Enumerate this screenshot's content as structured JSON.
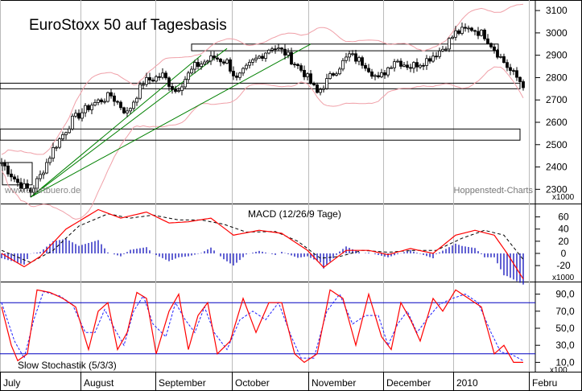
{
  "chart_data": [
    {
      "type": "candlestick",
      "title": "EuroStoxx 50 auf Tagesbasis",
      "watermark": "www.chartbuero.de",
      "source": "Hoppenstedt-Charts",
      "x_ticks": [
        "July",
        "August",
        "September",
        "October",
        "November",
        "December",
        "2010",
        "Febru"
      ],
      "y_ticks": [
        2300,
        2400,
        2500,
        2600,
        2700,
        2800,
        2900,
        3000,
        3100
      ],
      "ylim": [
        2240,
        3140
      ],
      "y_multiplier": "x1000",
      "close_anchors": [
        {
          "t": 0,
          "v": 2420
        },
        {
          "t": 5,
          "v": 2330
        },
        {
          "t": 9,
          "v": 2290
        },
        {
          "t": 12,
          "v": 2360
        },
        {
          "t": 16,
          "v": 2480
        },
        {
          "t": 22,
          "v": 2610
        },
        {
          "t": 28,
          "v": 2680
        },
        {
          "t": 34,
          "v": 2720
        },
        {
          "t": 39,
          "v": 2640
        },
        {
          "t": 44,
          "v": 2780
        },
        {
          "t": 50,
          "v": 2810
        },
        {
          "t": 54,
          "v": 2740
        },
        {
          "t": 60,
          "v": 2850
        },
        {
          "t": 66,
          "v": 2890
        },
        {
          "t": 70,
          "v": 2870
        },
        {
          "t": 73,
          "v": 2790
        },
        {
          "t": 78,
          "v": 2870
        },
        {
          "t": 84,
          "v": 2940
        },
        {
          "t": 88,
          "v": 2910
        },
        {
          "t": 94,
          "v": 2820
        },
        {
          "t": 98,
          "v": 2730
        },
        {
          "t": 103,
          "v": 2820
        },
        {
          "t": 108,
          "v": 2900
        },
        {
          "t": 113,
          "v": 2860
        },
        {
          "t": 117,
          "v": 2790
        },
        {
          "t": 122,
          "v": 2880
        },
        {
          "t": 127,
          "v": 2850
        },
        {
          "t": 132,
          "v": 2880
        },
        {
          "t": 137,
          "v": 2930
        },
        {
          "t": 141,
          "v": 3000
        },
        {
          "t": 146,
          "v": 3020
        },
        {
          "t": 150,
          "v": 2990
        },
        {
          "t": 154,
          "v": 2910
        },
        {
          "t": 158,
          "v": 2830
        },
        {
          "t": 162,
          "v": 2770
        }
      ],
      "resistance_zone": [
        2920,
        2950
      ],
      "support_zone": [
        2750,
        2775
      ],
      "lower_zone": [
        2520,
        2570
      ],
      "early_box": [
        2320,
        2420
      ],
      "trendlines": [
        {
          "from": {
            "t": 9,
            "v": 2265
          },
          "to": {
            "t": 62,
            "v": 2900
          }
        },
        {
          "from": {
            "t": 9,
            "v": 2265
          },
          "to": {
            "t": 70,
            "v": 2930
          }
        },
        {
          "from": {
            "t": 9,
            "v": 2265
          },
          "to": {
            "t": 96,
            "v": 2950
          }
        }
      ]
    },
    {
      "type": "line",
      "title": "MACD (12/26/9 Tage)",
      "y_ticks": [
        60,
        40,
        20,
        0,
        -20
      ],
      "ylim": [
        -45,
        78
      ],
      "y_multiplier": "x1000",
      "macd_anchors": [
        {
          "t": 0,
          "v": 0
        },
        {
          "t": 7,
          "v": -22
        },
        {
          "t": 12,
          "v": -5
        },
        {
          "t": 20,
          "v": 40
        },
        {
          "t": 30,
          "v": 72
        },
        {
          "t": 37,
          "v": 58
        },
        {
          "t": 45,
          "v": 68
        },
        {
          "t": 52,
          "v": 50
        },
        {
          "t": 58,
          "v": 52
        },
        {
          "t": 65,
          "v": 58
        },
        {
          "t": 72,
          "v": 30
        },
        {
          "t": 80,
          "v": 38
        },
        {
          "t": 87,
          "v": 33
        },
        {
          "t": 95,
          "v": 5
        },
        {
          "t": 100,
          "v": -23
        },
        {
          "t": 107,
          "v": 5
        },
        {
          "t": 114,
          "v": 5
        },
        {
          "t": 120,
          "v": -2
        },
        {
          "t": 127,
          "v": 8
        },
        {
          "t": 134,
          "v": 0
        },
        {
          "t": 141,
          "v": 30
        },
        {
          "t": 147,
          "v": 38
        },
        {
          "t": 153,
          "v": 30
        },
        {
          "t": 157,
          "v": 0
        },
        {
          "t": 162,
          "v": -42
        }
      ],
      "signal_anchors": [
        {
          "t": 0,
          "v": 5
        },
        {
          "t": 9,
          "v": -15
        },
        {
          "t": 16,
          "v": 5
        },
        {
          "t": 24,
          "v": 45
        },
        {
          "t": 33,
          "v": 65
        },
        {
          "t": 40,
          "v": 58
        },
        {
          "t": 47,
          "v": 63
        },
        {
          "t": 55,
          "v": 55
        },
        {
          "t": 62,
          "v": 55
        },
        {
          "t": 69,
          "v": 48
        },
        {
          "t": 76,
          "v": 35
        },
        {
          "t": 85,
          "v": 36
        },
        {
          "t": 92,
          "v": 20
        },
        {
          "t": 99,
          "v": -8
        },
        {
          "t": 105,
          "v": -5
        },
        {
          "t": 112,
          "v": 5
        },
        {
          "t": 120,
          "v": 2
        },
        {
          "t": 128,
          "v": 5
        },
        {
          "t": 135,
          "v": 5
        },
        {
          "t": 143,
          "v": 25
        },
        {
          "t": 150,
          "v": 38
        },
        {
          "t": 156,
          "v": 30
        },
        {
          "t": 162,
          "v": -10
        }
      ]
    },
    {
      "type": "line",
      "title": "Slow Stochastik (5/3/3)",
      "y_ticks": [
        "90,0",
        "70,0",
        "50,0",
        "30,0",
        "10,0"
      ],
      "ylim": [
        0,
        100
      ],
      "y_multiplier": "x100",
      "reference_levels": [
        80,
        20
      ],
      "k_anchors": [
        {
          "t": 0,
          "v": 75
        },
        {
          "t": 3,
          "v": 30
        },
        {
          "t": 5,
          "v": 12
        },
        {
          "t": 8,
          "v": 20
        },
        {
          "t": 11,
          "v": 95
        },
        {
          "t": 15,
          "v": 92
        },
        {
          "t": 19,
          "v": 85
        },
        {
          "t": 23,
          "v": 75
        },
        {
          "t": 27,
          "v": 25
        },
        {
          "t": 30,
          "v": 70
        },
        {
          "t": 33,
          "v": 80
        },
        {
          "t": 36,
          "v": 25
        },
        {
          "t": 39,
          "v": 45
        },
        {
          "t": 42,
          "v": 92
        },
        {
          "t": 45,
          "v": 85
        },
        {
          "t": 48,
          "v": 20
        },
        {
          "t": 52,
          "v": 70
        },
        {
          "t": 55,
          "v": 90
        },
        {
          "t": 58,
          "v": 25
        },
        {
          "t": 61,
          "v": 65
        },
        {
          "t": 64,
          "v": 80
        },
        {
          "t": 67,
          "v": 20
        },
        {
          "t": 71,
          "v": 35
        },
        {
          "t": 75,
          "v": 85
        },
        {
          "t": 79,
          "v": 45
        },
        {
          "t": 83,
          "v": 80
        },
        {
          "t": 87,
          "v": 80
        },
        {
          "t": 91,
          "v": 20
        },
        {
          "t": 94,
          "v": 10
        },
        {
          "t": 98,
          "v": 20
        },
        {
          "t": 102,
          "v": 95
        },
        {
          "t": 106,
          "v": 85
        },
        {
          "t": 110,
          "v": 30
        },
        {
          "t": 114,
          "v": 90
        },
        {
          "t": 118,
          "v": 40
        },
        {
          "t": 121,
          "v": 25
        },
        {
          "t": 124,
          "v": 80
        },
        {
          "t": 127,
          "v": 60
        },
        {
          "t": 130,
          "v": 35
        },
        {
          "t": 134,
          "v": 85
        },
        {
          "t": 137,
          "v": 70
        },
        {
          "t": 141,
          "v": 95
        },
        {
          "t": 145,
          "v": 85
        },
        {
          "t": 149,
          "v": 75
        },
        {
          "t": 153,
          "v": 20
        },
        {
          "t": 156,
          "v": 30
        },
        {
          "t": 159,
          "v": 10
        },
        {
          "t": 162,
          "v": 10
        }
      ],
      "d_anchors": [
        {
          "t": 0,
          "v": 80
        },
        {
          "t": 4,
          "v": 35
        },
        {
          "t": 7,
          "v": 15
        },
        {
          "t": 10,
          "v": 60
        },
        {
          "t": 13,
          "v": 93
        },
        {
          "t": 18,
          "v": 88
        },
        {
          "t": 22,
          "v": 78
        },
        {
          "t": 26,
          "v": 45
        },
        {
          "t": 29,
          "v": 45
        },
        {
          "t": 32,
          "v": 72
        },
        {
          "t": 35,
          "v": 50
        },
        {
          "t": 38,
          "v": 30
        },
        {
          "t": 41,
          "v": 70
        },
        {
          "t": 44,
          "v": 88
        },
        {
          "t": 47,
          "v": 55
        },
        {
          "t": 51,
          "v": 40
        },
        {
          "t": 54,
          "v": 80
        },
        {
          "t": 57,
          "v": 60
        },
        {
          "t": 60,
          "v": 45
        },
        {
          "t": 63,
          "v": 75
        },
        {
          "t": 66,
          "v": 45
        },
        {
          "t": 70,
          "v": 25
        },
        {
          "t": 74,
          "v": 60
        },
        {
          "t": 78,
          "v": 70
        },
        {
          "t": 82,
          "v": 60
        },
        {
          "t": 86,
          "v": 80
        },
        {
          "t": 90,
          "v": 40
        },
        {
          "t": 93,
          "v": 15
        },
        {
          "t": 97,
          "v": 15
        },
        {
          "t": 101,
          "v": 70
        },
        {
          "t": 105,
          "v": 90
        },
        {
          "t": 109,
          "v": 55
        },
        {
          "t": 113,
          "v": 65
        },
        {
          "t": 117,
          "v": 65
        },
        {
          "t": 120,
          "v": 30
        },
        {
          "t": 123,
          "v": 55
        },
        {
          "t": 126,
          "v": 70
        },
        {
          "t": 129,
          "v": 45
        },
        {
          "t": 133,
          "v": 65
        },
        {
          "t": 136,
          "v": 78
        },
        {
          "t": 140,
          "v": 85
        },
        {
          "t": 144,
          "v": 90
        },
        {
          "t": 148,
          "v": 80
        },
        {
          "t": 152,
          "v": 45
        },
        {
          "t": 155,
          "v": 22
        },
        {
          "t": 158,
          "v": 20
        },
        {
          "t": 162,
          "v": 12
        }
      ]
    }
  ],
  "colors": {
    "candle": "#000000",
    "bollinger": "#f0a0a8",
    "trendline": "#008000",
    "macd": "#ff0000",
    "signal": "#000000",
    "histogram": "#2020c0",
    "stoch_k": "#ff0000",
    "stoch_d": "#2020ff",
    "reference": "#0000c0"
  }
}
